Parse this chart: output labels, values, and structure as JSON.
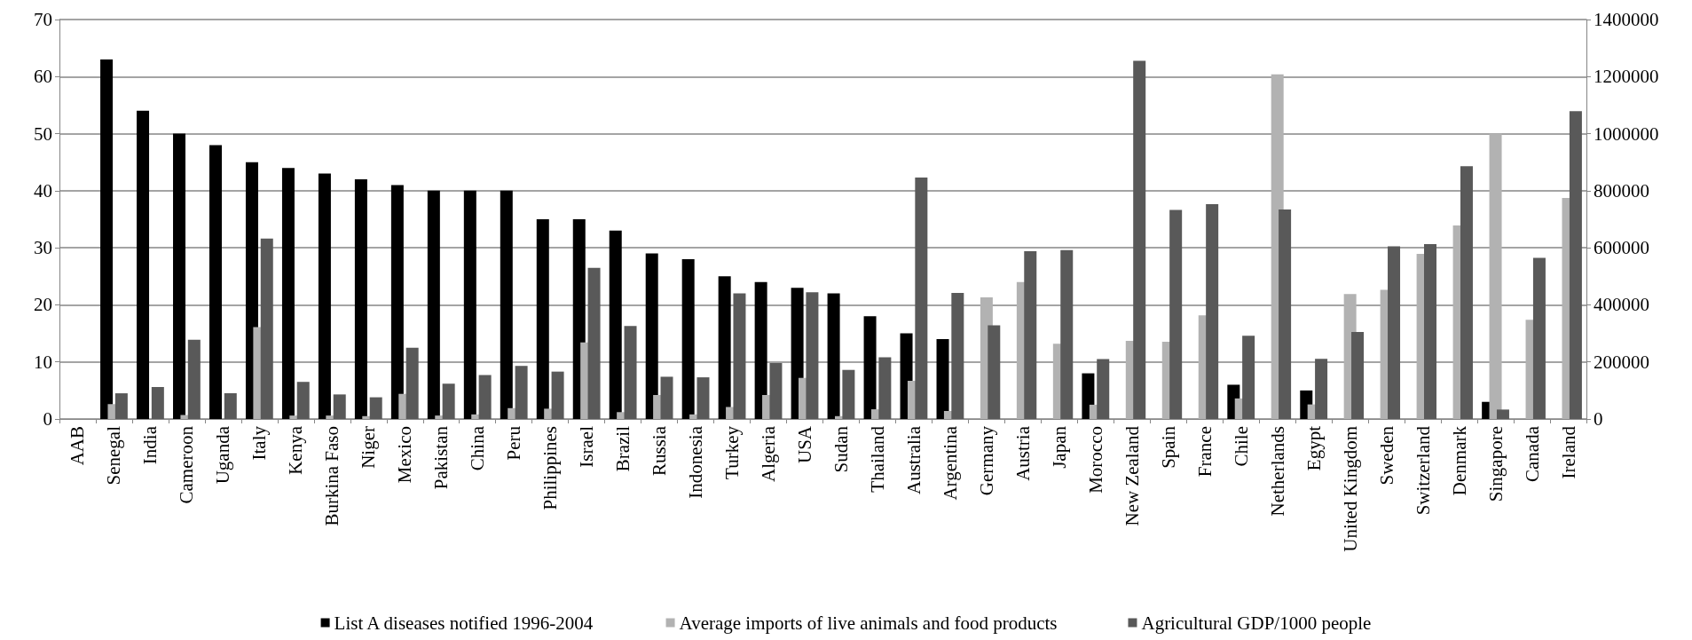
{
  "chart_data": {
    "type": "bar",
    "categories": [
      "AAB",
      "Senegal",
      "India",
      "Cameroon",
      "Uganda",
      "Italy",
      "Kenya",
      "Burkina Faso",
      "Niger",
      "Mexico",
      "Pakistan",
      "China",
      "Peru",
      "Philippines",
      "Israel",
      "Brazil",
      "Russia",
      "Indonesia",
      "Turkey",
      "Algeria",
      "USA",
      "Sudan",
      "Thailand",
      "Australia",
      "Argentina",
      "Germany",
      "Austria",
      "Japan",
      "Morocco",
      "New Zealand",
      "Spain",
      "France",
      "Chile",
      "Netherlands",
      "Egypt",
      "United Kingdom",
      "Sweden",
      "Switzerland",
      "Denmark",
      "Singapore",
      "Canada",
      "Ireland"
    ],
    "series": [
      {
        "name": "List A diseases notified 1996-2004",
        "color": "#000000",
        "values": [
          null,
          63,
          54,
          50,
          48,
          45,
          44,
          43,
          42,
          41,
          40,
          40,
          40,
          35,
          35,
          33,
          29,
          28,
          25,
          24,
          23,
          22,
          18,
          15,
          14,
          null,
          null,
          null,
          8,
          null,
          null,
          null,
          6,
          null,
          5,
          null,
          null,
          null,
          null,
          3,
          null,
          null
        ]
      },
      {
        "name": "Average imports of live animals and food products",
        "color": "#b2b2b2",
        "axis": "y2",
        "values": [
          null,
          52000,
          0,
          14000,
          0,
          322000,
          12000,
          12000,
          10000,
          88000,
          12000,
          16000,
          38000,
          36000,
          268000,
          24000,
          84000,
          16000,
          42000,
          84000,
          144000,
          10000,
          34000,
          134000,
          28000,
          426000,
          480000,
          264000,
          50000,
          274000,
          271000,
          363000,
          72000,
          1208000,
          51000,
          438000,
          453000,
          579000,
          678000,
          1000000,
          348000,
          775000
        ]
      },
      {
        "name": "Agricultural GDP/1000 people",
        "color": "#595959",
        "axis": "y2",
        "values": [
          null,
          90000,
          112000,
          278000,
          90000,
          632000,
          130000,
          86000,
          76000,
          250000,
          124000,
          154000,
          186000,
          166000,
          530000,
          326000,
          148000,
          146000,
          440000,
          196000,
          444000,
          172000,
          216000,
          846000,
          442000,
          328000,
          588000,
          592000,
          210000,
          1255000,
          733000,
          753000,
          292000,
          734000,
          211000,
          305000,
          605000,
          613000,
          886000,
          33000,
          565000,
          1079000
        ]
      }
    ],
    "ylim": [
      0,
      70
    ],
    "yticks": [
      0,
      10,
      20,
      30,
      40,
      50,
      60,
      70
    ],
    "y2lim": [
      0,
      1400000
    ],
    "y2ticks": [
      0,
      200000,
      400000,
      600000,
      800000,
      1000000,
      1200000,
      1400000
    ],
    "grid": "y",
    "legend": "bottom"
  }
}
